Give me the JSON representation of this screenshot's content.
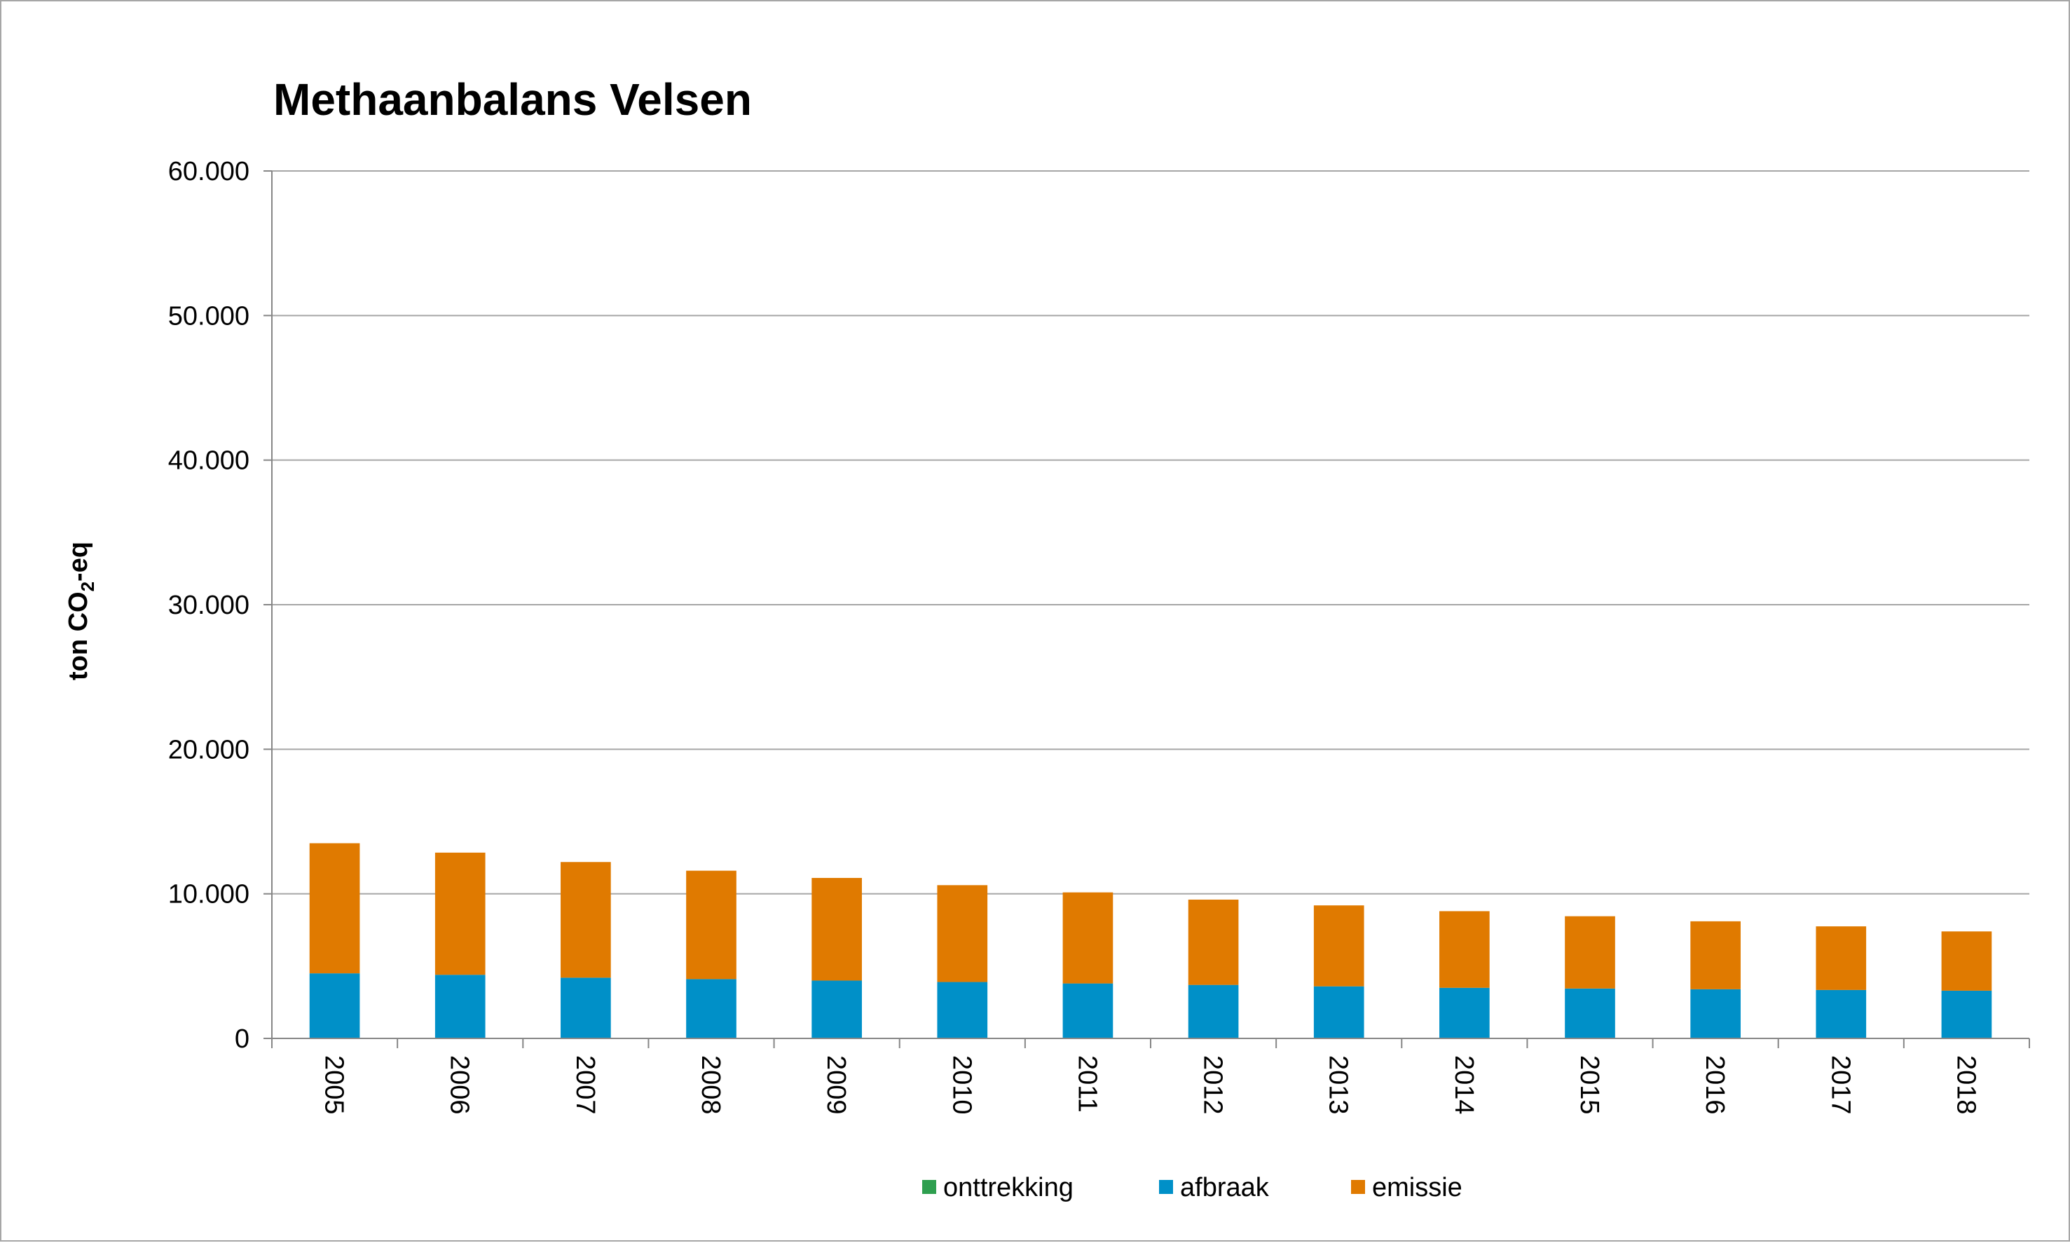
{
  "chart_data": {
    "type": "bar",
    "stacked": true,
    "title": "Methaanbalans Velsen",
    "ylabel": {
      "prefix": "ton CO",
      "sub": "2",
      "suffix": "-eq"
    },
    "xlabel": "",
    "ylim": [
      0,
      60000
    ],
    "yticks": [
      0,
      10000,
      20000,
      30000,
      40000,
      50000,
      60000
    ],
    "ytick_labels": [
      "0",
      "10.000",
      "20.000",
      "30.000",
      "40.000",
      "50.000",
      "60.000"
    ],
    "grid": true,
    "legend_position": "bottom",
    "categories": [
      "2005",
      "2006",
      "2007",
      "2008",
      "2009",
      "2010",
      "2011",
      "2012",
      "2013",
      "2014",
      "2015",
      "2016",
      "2017",
      "2018"
    ],
    "series": [
      {
        "name": "onttrekking",
        "color": "#2e9f4f",
        "values": [
          0,
          0,
          0,
          0,
          0,
          0,
          0,
          0,
          0,
          0,
          0,
          0,
          0,
          0
        ]
      },
      {
        "name": "afbraak",
        "color": "#0090c8",
        "values": [
          4500,
          4400,
          4200,
          4100,
          4000,
          3900,
          3800,
          3700,
          3600,
          3500,
          3450,
          3400,
          3350,
          3300
        ]
      },
      {
        "name": "emissie",
        "color": "#e07a00",
        "values": [
          9000,
          8450,
          8000,
          7500,
          7100,
          6700,
          6300,
          5900,
          5600,
          5300,
          5000,
          4700,
          4400,
          4100
        ]
      }
    ]
  }
}
